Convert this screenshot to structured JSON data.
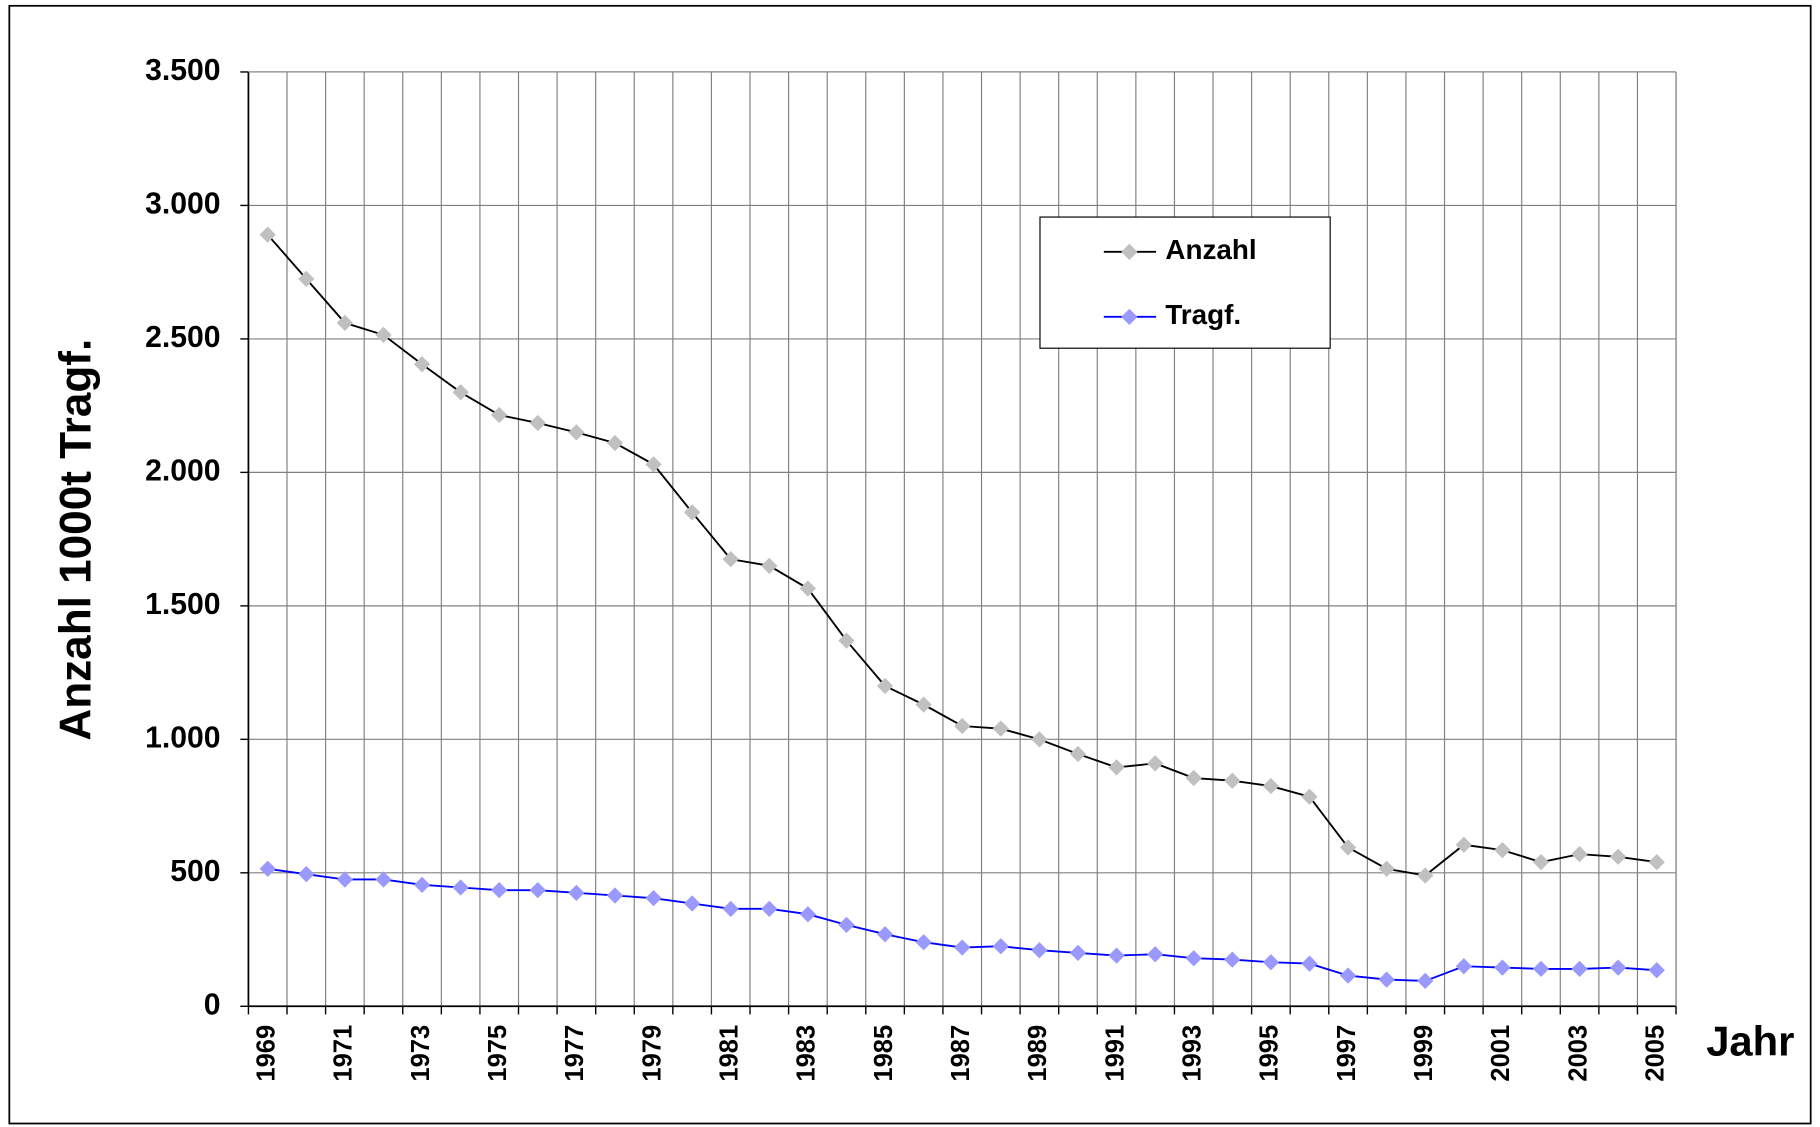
{
  "chart_data": {
    "type": "line",
    "y_axis_label": "Anzahl  1000t Tragf.",
    "x_axis_label": "Jahr",
    "categories": [
      "1969",
      null,
      "1971",
      null,
      "1973",
      null,
      "1975",
      null,
      "1977",
      null,
      "1979",
      null,
      "1981",
      null,
      "1983",
      null,
      "1985",
      null,
      "1987",
      null,
      "1989",
      null,
      "1991",
      null,
      "1993",
      null,
      "1995",
      null,
      "1997",
      null,
      "1999",
      null,
      "2001",
      null,
      "2003",
      null,
      "2005"
    ],
    "series": [
      {
        "name": "Anzahl",
        "color": "#000000",
        "marker_color": "#c0c0c0",
        "values": [
          2890,
          2725,
          2560,
          2515,
          2405,
          2300,
          2215,
          2185,
          2150,
          2110,
          2030,
          1850,
          1675,
          1650,
          1565,
          1370,
          1200,
          1130,
          1050,
          1040,
          1000,
          945,
          895,
          910,
          855,
          845,
          825,
          785,
          595,
          515,
          490,
          605,
          585,
          540,
          570,
          560,
          540
        ]
      },
      {
        "name": "Tragf.",
        "color": "#0000ff",
        "marker_color": "#9999ff",
        "values": [
          515,
          495,
          475,
          475,
          455,
          445,
          435,
          435,
          425,
          415,
          405,
          385,
          365,
          365,
          345,
          305,
          270,
          240,
          220,
          225,
          210,
          200,
          190,
          195,
          180,
          175,
          165,
          160,
          115,
          100,
          95,
          150,
          145,
          140,
          140,
          145,
          135
        ]
      }
    ],
    "ylim": [
      0,
      3500
    ],
    "yticks": [
      0,
      500,
      {
        "value": 1000,
        "label": "1.000"
      },
      {
        "value": 1500,
        "label": "1.500"
      },
      {
        "value": 2000,
        "label": "2.000"
      },
      {
        "value": 2500,
        "label": "2.500"
      },
      {
        "value": 3000,
        "label": "3.000"
      },
      {
        "value": 3500,
        "label": "3.500"
      }
    ],
    "grid": true,
    "legend_position": "upper right"
  }
}
